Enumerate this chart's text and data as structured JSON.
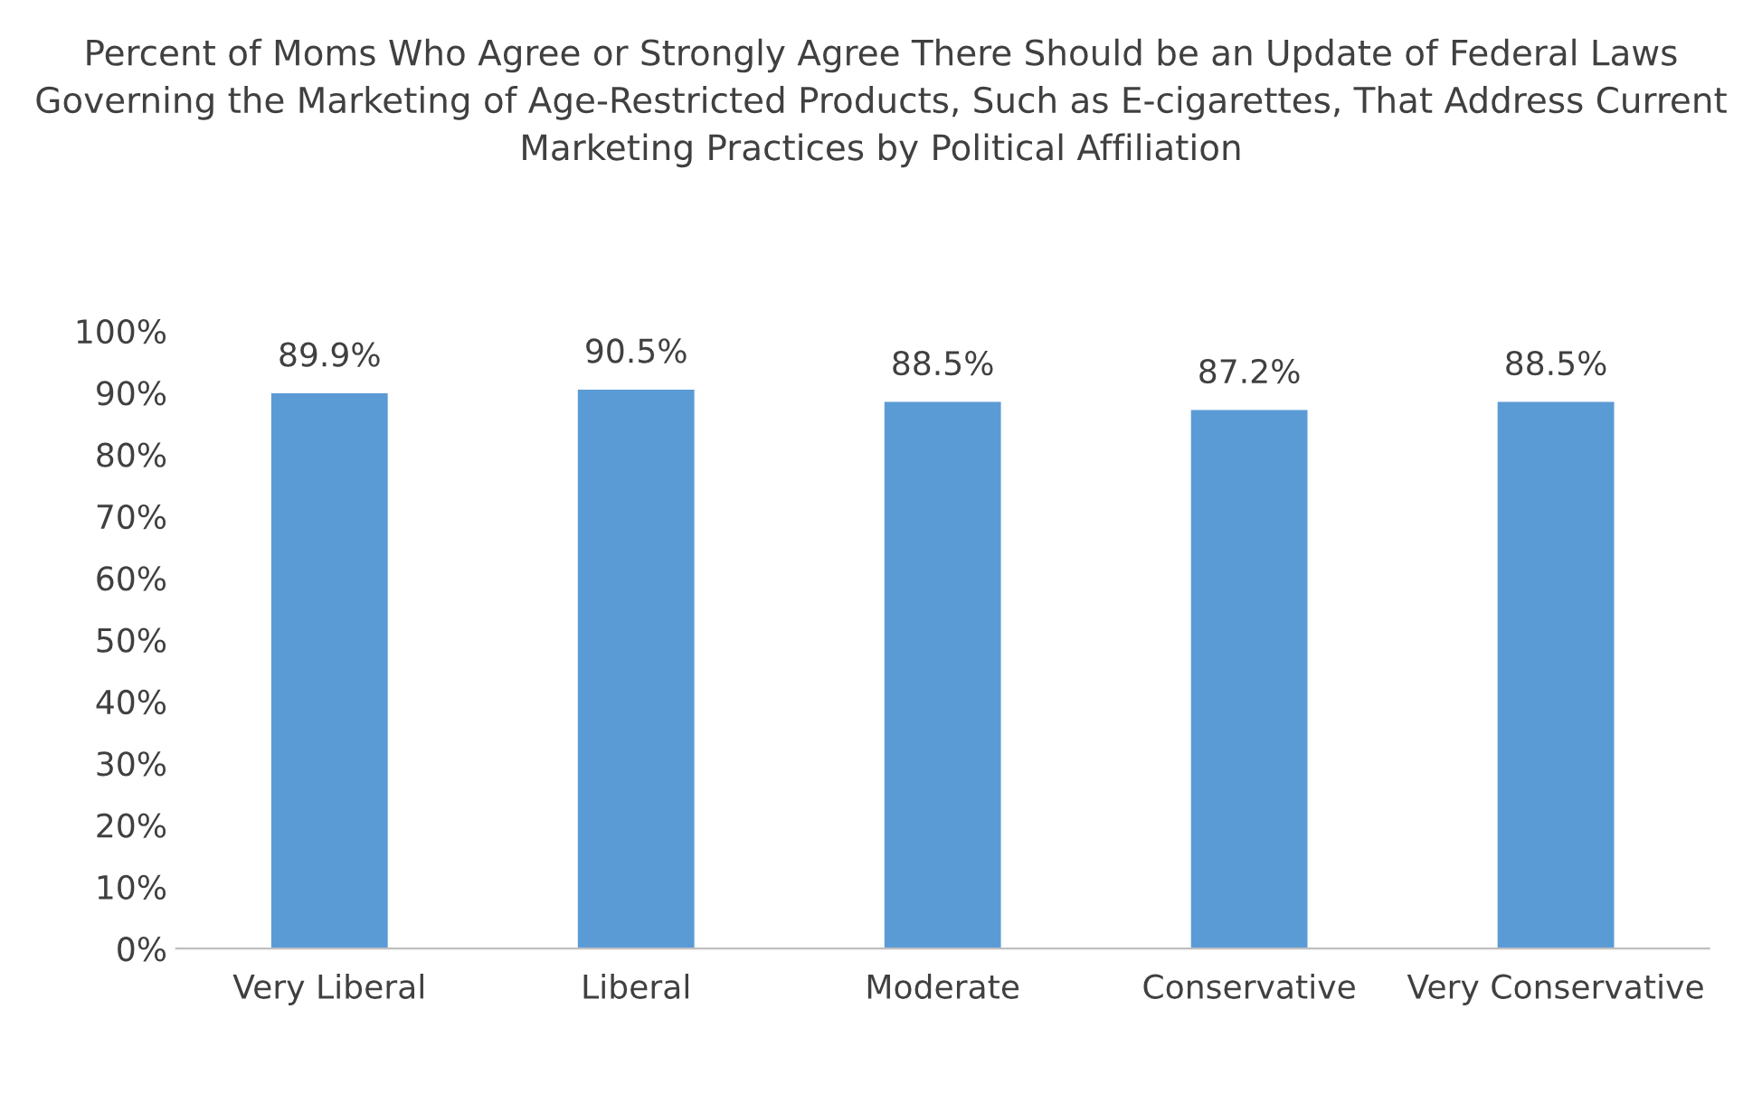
{
  "chart_data": {
    "type": "bar",
    "title": "Percent of Moms Who Agree or Strongly Agree There Should be an Update of Federal Laws Governing the Marketing of Age-Restricted Products, Such as E-cigarettes, That Address Current Marketing Practices by Political Affiliation",
    "categories": [
      "Very Liberal",
      "Liberal",
      "Moderate",
      "Conservative",
      "Very Conservative"
    ],
    "values": [
      89.9,
      90.5,
      88.5,
      87.2,
      88.5
    ],
    "value_labels": [
      "89.9%",
      "90.5%",
      "88.5%",
      "87.2%",
      "88.5%"
    ],
    "color": "#5b9bd5",
    "ylim": [
      0,
      100
    ],
    "yticks": [
      {
        "value": 0,
        "label": "0%"
      },
      {
        "value": 10,
        "label": "10%"
      },
      {
        "value": 20,
        "label": "20%"
      },
      {
        "value": 30,
        "label": "30%"
      },
      {
        "value": 40,
        "label": "40%"
      },
      {
        "value": 50,
        "label": "50%"
      },
      {
        "value": 60,
        "label": "60%"
      },
      {
        "value": 70,
        "label": "70%"
      },
      {
        "value": 80,
        "label": "80%"
      },
      {
        "value": 90,
        "label": "90%"
      },
      {
        "value": 100,
        "label": "100%"
      }
    ],
    "grid": false,
    "legend": false
  }
}
